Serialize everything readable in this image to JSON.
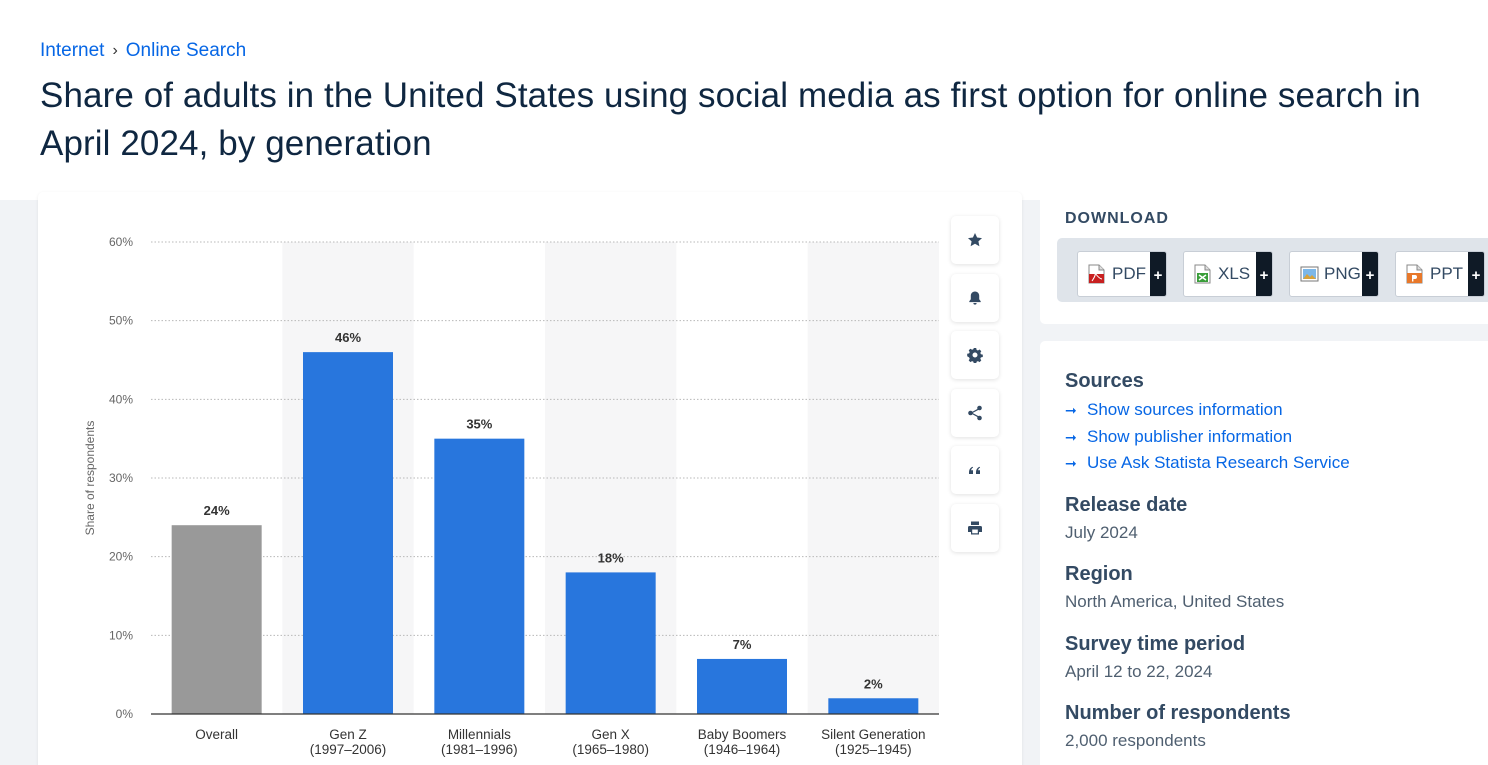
{
  "breadcrumb": {
    "parent": "Internet",
    "separator": "›",
    "current": "Online Search"
  },
  "title": "Share of adults in the United States using social media as first option for online search in April 2024, by generation",
  "chart_data": {
    "type": "bar",
    "title": "",
    "xlabel": "",
    "ylabel": "Share of respondents",
    "ylim": [
      0,
      60
    ],
    "yticks": [
      "0%",
      "10%",
      "20%",
      "30%",
      "40%",
      "50%",
      "60%"
    ],
    "categories": [
      {
        "name": "Overall",
        "sub": ""
      },
      {
        "name": "Gen Z",
        "sub": "(1997–2006)"
      },
      {
        "name": "Millennials",
        "sub": "(1981–1996)"
      },
      {
        "name": "Gen X",
        "sub": "(1965–1980)"
      },
      {
        "name": "Baby Boomers",
        "sub": "(1946–1964)"
      },
      {
        "name": "Silent Generation",
        "sub": "(1925–1945)"
      }
    ],
    "values": [
      24,
      46,
      35,
      18,
      7,
      2
    ],
    "value_labels": [
      "24%",
      "46%",
      "35%",
      "18%",
      "7%",
      "2%"
    ],
    "colors": [
      "#999999",
      "#2876dd",
      "#2876dd",
      "#2876dd",
      "#2876dd",
      "#2876dd"
    ],
    "grid": true,
    "alternating_bands": true
  },
  "tools": [
    {
      "name": "star-icon"
    },
    {
      "name": "bell-icon"
    },
    {
      "name": "gear-icon"
    },
    {
      "name": "share-icon"
    },
    {
      "name": "quote-icon"
    },
    {
      "name": "print-icon"
    }
  ],
  "download": {
    "title": "DOWNLOAD",
    "formats": [
      {
        "label": "PDF",
        "plus": "+",
        "icon": "pdf-file-icon"
      },
      {
        "label": "XLS",
        "plus": "+",
        "icon": "xls-file-icon"
      },
      {
        "label": "PNG",
        "plus": "+",
        "icon": "png-file-icon"
      },
      {
        "label": "PPT",
        "plus": "+",
        "icon": "ppt-file-icon"
      }
    ]
  },
  "info": {
    "sources_heading": "Sources",
    "links": [
      "Show sources information",
      "Show publisher information",
      "Use Ask Statista Research Service"
    ],
    "release_heading": "Release date",
    "release_value": "July 2024",
    "region_heading": "Region",
    "region_value": "North America, United States",
    "survey_heading": "Survey time period",
    "survey_value": "April 12 to 22, 2024",
    "respondents_heading": "Number of respondents",
    "respondents_value": "2,000 respondents"
  },
  "colors": {
    "accent": "#0666e5",
    "bar_primary": "#2876dd",
    "bar_overall": "#999999",
    "heading": "#334a63"
  }
}
